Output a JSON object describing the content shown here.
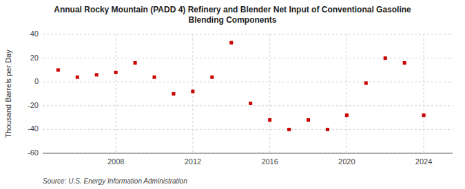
{
  "chart_data": {
    "type": "scatter",
    "title": "Annual Rocky Mountain (PADD 4) Refinery and Blender Net Input of Conventional Gasoline\nBlending Components",
    "y_label": "Thousand Barrels per Day",
    "source": "Source: U.S. Energy Information Administration",
    "x": [
      2005,
      2006,
      2007,
      2008,
      2009,
      2010,
      2011,
      2012,
      2013,
      2014,
      2015,
      2016,
      2017,
      2018,
      2019,
      2020,
      2021,
      2022,
      2023,
      2024
    ],
    "values": [
      10,
      4,
      6,
      8,
      16,
      4,
      -10,
      -8,
      4,
      33,
      -18,
      -32,
      -40,
      -32,
      -40,
      -28,
      -1,
      20,
      16,
      -28
    ],
    "color": "#cc0000",
    "marker": "square",
    "xlim": [
      2004.2,
      2025.5
    ],
    "xticks": [
      2008,
      2012,
      2016,
      2020,
      2024
    ],
    "ylim": [
      -60,
      40
    ],
    "yticks": [
      -60,
      -40,
      -20,
      0,
      20,
      40
    ],
    "grid": true
  }
}
